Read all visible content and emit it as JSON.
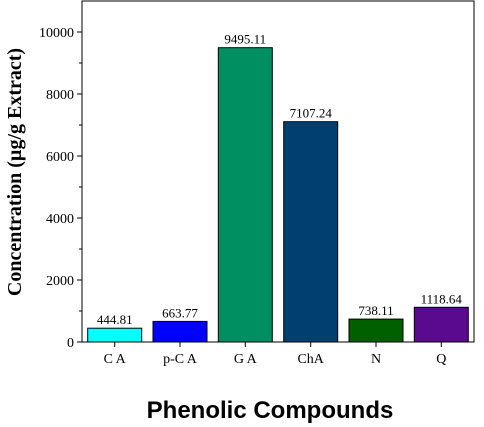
{
  "chart_data": {
    "type": "bar",
    "title": "",
    "xlabel": "Phenolic Compounds",
    "ylabel": "Concentration (µg/g Extract)",
    "categories": [
      "C A",
      "p-C A",
      "G A",
      "ChA",
      "N",
      "Q"
    ],
    "values": [
      444.81,
      663.77,
      9495.11,
      7107.24,
      738.11,
      1118.64
    ],
    "data_labels": [
      "444.81",
      "663.77",
      "9495.11",
      "7107.24",
      "738.11",
      "1118.64"
    ],
    "colors": [
      "#00ffff",
      "#0000ff",
      "#008f60",
      "#003f70",
      "#006000",
      "#5a0a8f"
    ],
    "ylim": [
      0,
      11000
    ],
    "yticks": [
      0,
      2000,
      4000,
      6000,
      8000,
      10000
    ],
    "grid": false,
    "legend": "none"
  }
}
